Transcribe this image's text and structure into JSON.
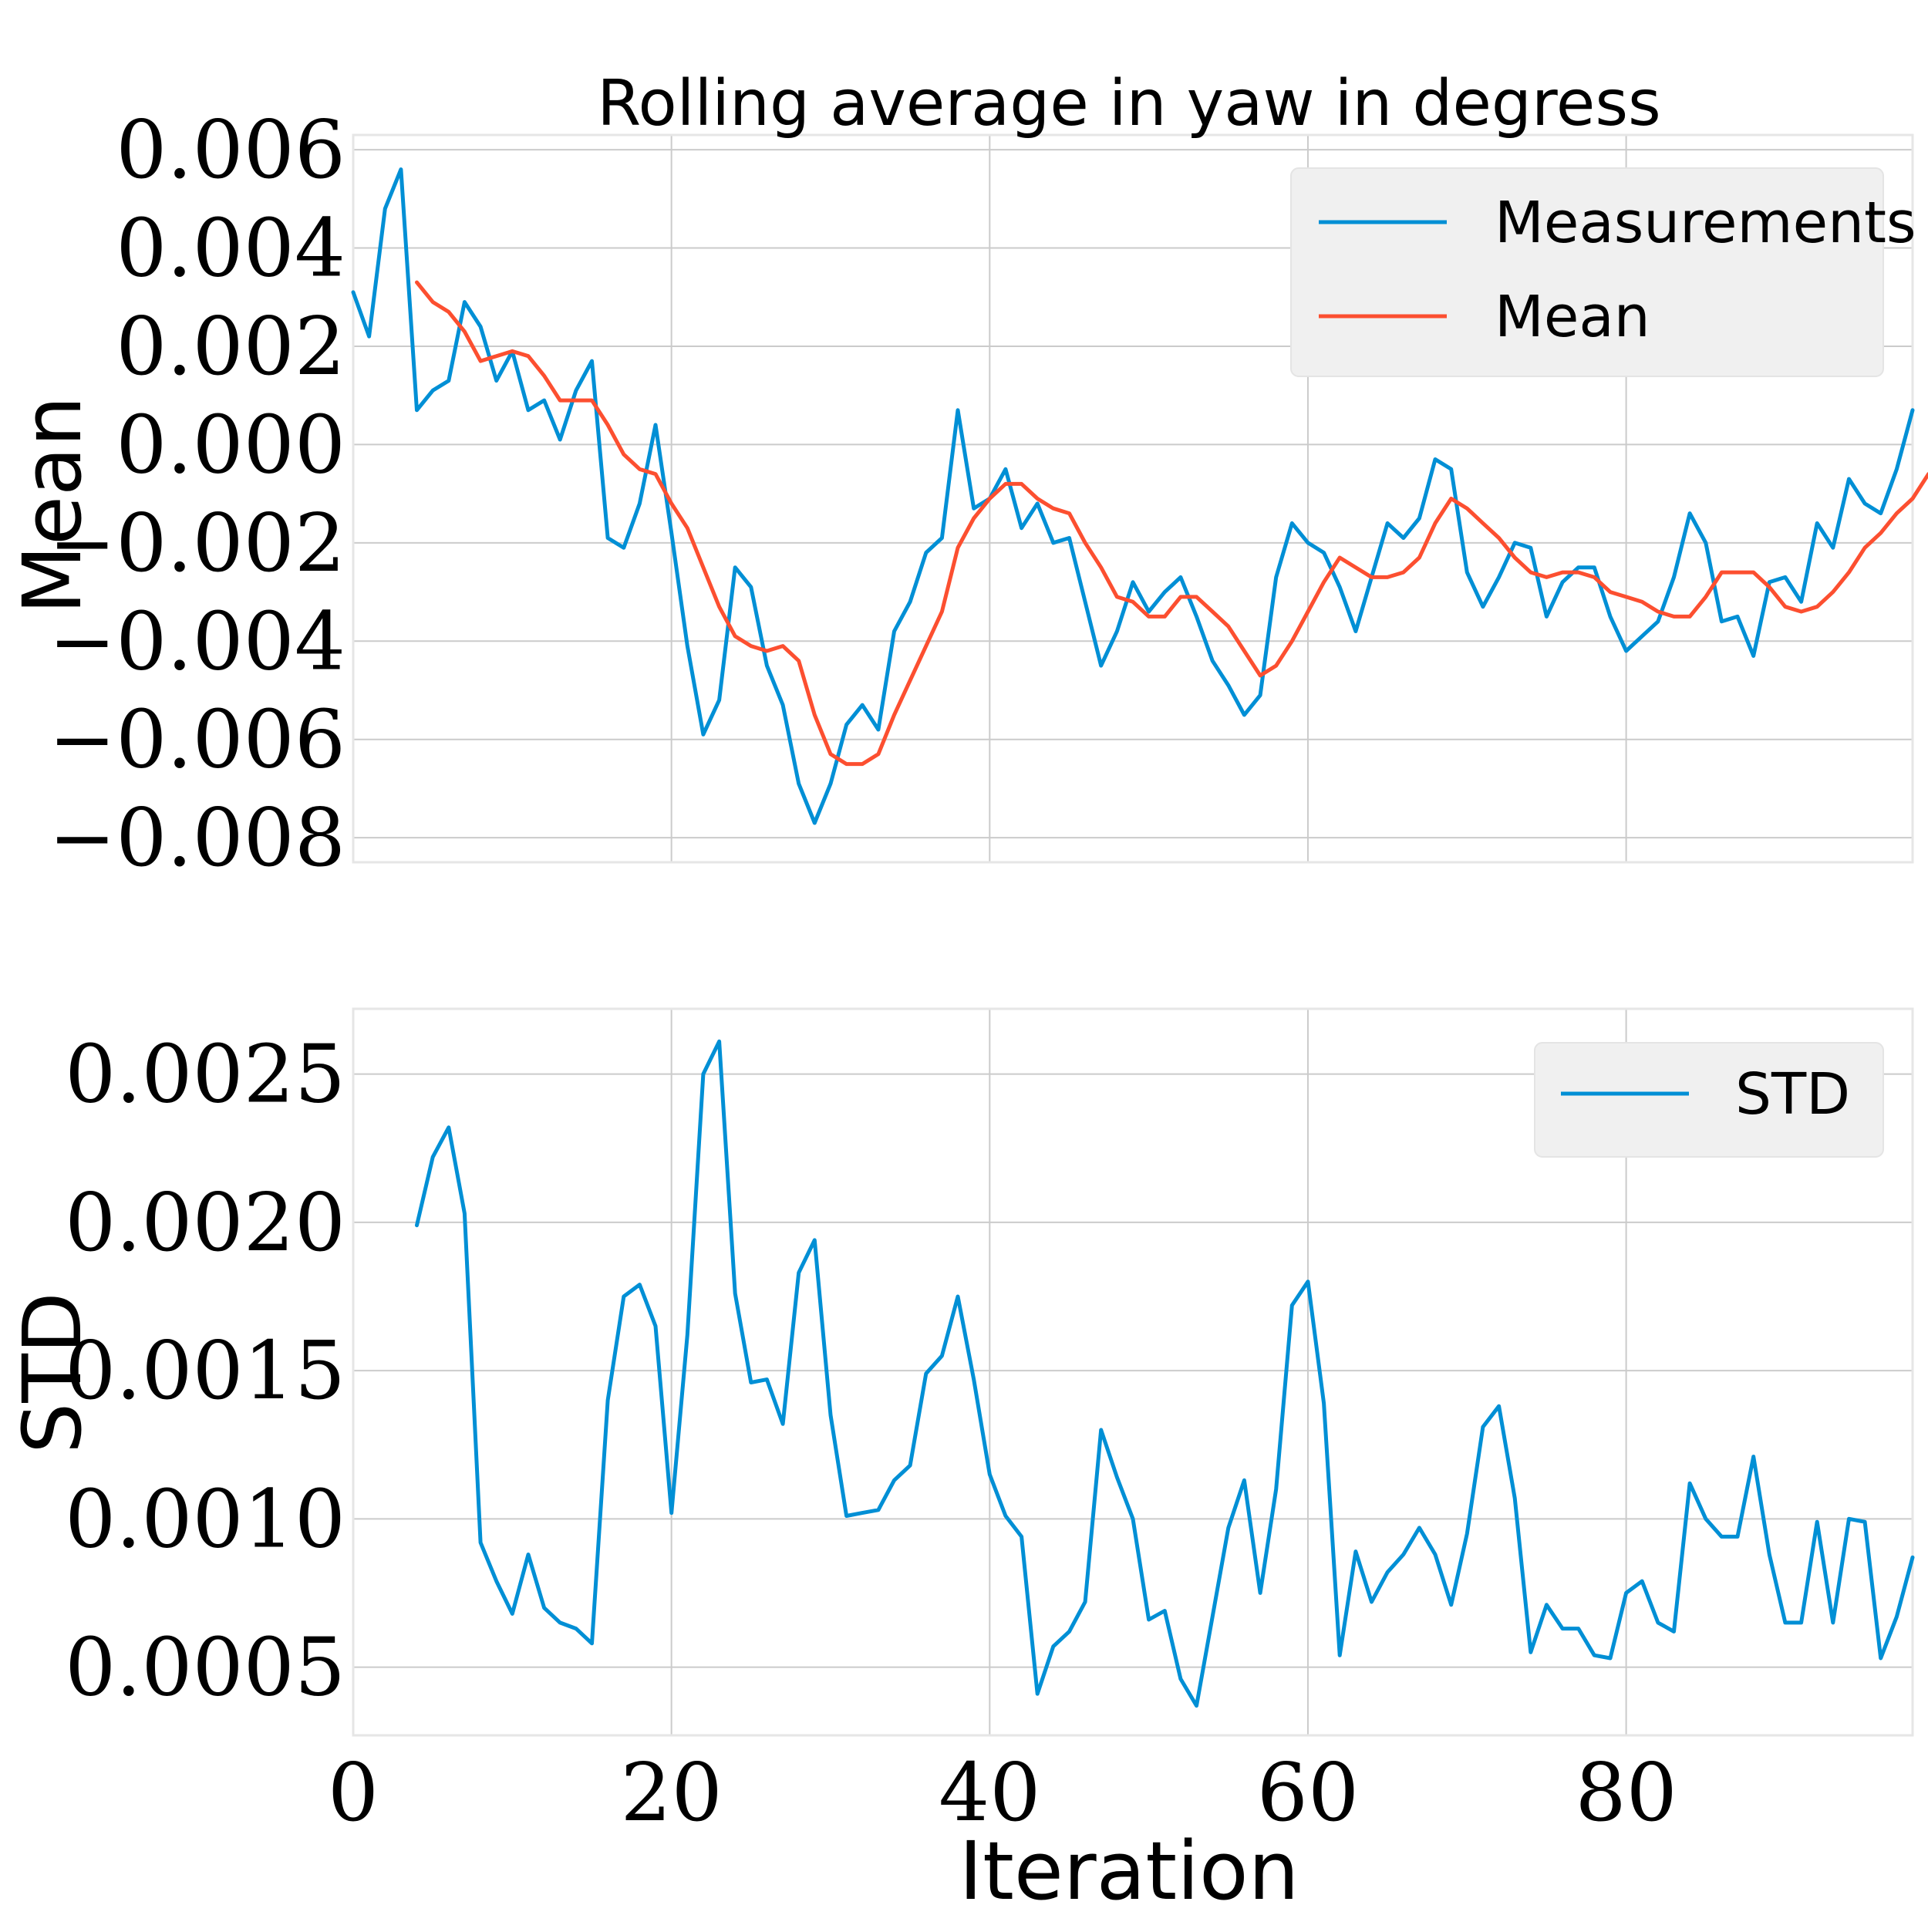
{
  "colors": {
    "measurements": "#008FD5",
    "mean": "#FC4F30",
    "std": "#008FD5",
    "grid": "#CBCBCB",
    "legend_bg": "#F0F0F0",
    "frame": "#E6E6E6"
  },
  "chart_data": [
    {
      "type": "line",
      "title": "Rolling average in yaw in degress",
      "ylabel": "Mean",
      "xlabel": "",
      "xlim": [
        0,
        98
      ],
      "ylim": [
        -0.0085,
        0.0063
      ],
      "grid": true,
      "legend_position": "top-right",
      "x_ticks": [
        0,
        20,
        40,
        60,
        80
      ],
      "y_ticks": [
        {
          "value": -0.008,
          "label": "−0.008"
        },
        {
          "value": -0.006,
          "label": "−0.006"
        },
        {
          "value": -0.004,
          "label": "−0.004"
        },
        {
          "value": -0.002,
          "label": "−0.002"
        },
        {
          "value": 0.0,
          "label": "0.000"
        },
        {
          "value": 0.002,
          "label": "0.002"
        },
        {
          "value": 0.004,
          "label": "0.004"
        },
        {
          "value": 0.006,
          "label": "0.006"
        }
      ],
      "series": [
        {
          "name": "Measurements",
          "color": "#008FD5",
          "x_start": 0,
          "values": [
            0.0031,
            0.0022,
            0.0048,
            0.0056,
            0.0007,
            0.0011,
            0.0013,
            0.0029,
            0.0024,
            0.0013,
            0.0019,
            0.0007,
            0.0009,
            0.0001,
            0.0011,
            0.0017,
            -0.0019,
            -0.0021,
            -0.0012,
            0.0004,
            -0.0018,
            -0.0041,
            -0.0059,
            -0.0052,
            -0.0025,
            -0.0029,
            -0.0045,
            -0.0053,
            -0.0069,
            -0.0077,
            -0.0069,
            -0.0057,
            -0.0053,
            -0.0058,
            -0.0038,
            -0.0032,
            -0.0022,
            -0.0019,
            0.0007,
            -0.0013,
            -0.0011,
            -0.0005,
            -0.0017,
            -0.0012,
            -0.002,
            -0.0019,
            -0.0032,
            -0.0045,
            -0.0038,
            -0.0028,
            -0.0034,
            -0.003,
            -0.0027,
            -0.0035,
            -0.0044,
            -0.0049,
            -0.0055,
            -0.0051,
            -0.0027,
            -0.0016,
            -0.002,
            -0.0022,
            -0.0029,
            -0.0038,
            -0.0027,
            -0.0016,
            -0.0019,
            -0.0015,
            -0.0003,
            -0.0005,
            -0.0026,
            -0.0033,
            -0.0027,
            -0.002,
            -0.0021,
            -0.0035,
            -0.0028,
            -0.0025,
            -0.0025,
            -0.0035,
            -0.0042,
            -0.0039,
            -0.0036,
            -0.0027,
            -0.0014,
            -0.002,
            -0.0036,
            -0.0035,
            -0.0043,
            -0.0028,
            -0.0027,
            -0.0032,
            -0.0016,
            -0.0021,
            -0.0007,
            -0.0012,
            -0.0014,
            -0.0005,
            0.0007
          ]
        },
        {
          "name": "Mean",
          "color": "#FC4F30",
          "x_start": 4,
          "values": [
            0.0033,
            0.0029,
            0.0027,
            0.0023,
            0.0017,
            0.0018,
            0.0019,
            0.0018,
            0.0014,
            0.0009,
            0.0009,
            0.0009,
            0.0004,
            -0.0002,
            -0.0005,
            -0.0006,
            -0.0012,
            -0.0017,
            -0.0025,
            -0.0033,
            -0.0039,
            -0.0041,
            -0.0042,
            -0.0041,
            -0.0044,
            -0.0055,
            -0.0063,
            -0.0065,
            -0.0065,
            -0.0063,
            -0.0055,
            -0.0048,
            -0.0041,
            -0.0034,
            -0.0021,
            -0.0015,
            -0.0011,
            -0.0008,
            -0.0008,
            -0.0011,
            -0.0013,
            -0.0014,
            -0.002,
            -0.0025,
            -0.0031,
            -0.0032,
            -0.0035,
            -0.0035,
            -0.0031,
            -0.0031,
            -0.0034,
            -0.0037,
            -0.0042,
            -0.0047,
            -0.0045,
            -0.004,
            -0.0034,
            -0.0028,
            -0.0023,
            -0.0025,
            -0.0027,
            -0.0027,
            -0.0026,
            -0.0023,
            -0.0016,
            -0.0011,
            -0.0013,
            -0.0016,
            -0.0019,
            -0.0023,
            -0.0026,
            -0.0027,
            -0.0026,
            -0.0026,
            -0.0027,
            -0.003,
            -0.0031,
            -0.0032,
            -0.0034,
            -0.0035,
            -0.0035,
            -0.0031,
            -0.0026,
            -0.0026,
            -0.0026,
            -0.0029,
            -0.0033,
            -0.0034,
            -0.0033,
            -0.003,
            -0.0026,
            -0.0021,
            -0.0018,
            -0.0014,
            -0.0011,
            -0.0006
          ]
        }
      ]
    },
    {
      "type": "line",
      "title": "",
      "ylabel": "STD",
      "xlabel": "Iteration",
      "xlim": [
        0,
        98
      ],
      "ylim": [
        0.00027,
        0.00272
      ],
      "grid": true,
      "legend_position": "top-right",
      "x_ticks": [
        {
          "value": 0,
          "label": "0"
        },
        {
          "value": 20,
          "label": "20"
        },
        {
          "value": 40,
          "label": "40"
        },
        {
          "value": 60,
          "label": "60"
        },
        {
          "value": 80,
          "label": "80"
        }
      ],
      "y_ticks": [
        {
          "value": 0.0005,
          "label": "0.0005"
        },
        {
          "value": 0.001,
          "label": "0.0010"
        },
        {
          "value": 0.0015,
          "label": "0.0015"
        },
        {
          "value": 0.002,
          "label": "0.0020"
        },
        {
          "value": 0.0025,
          "label": "0.0025"
        }
      ],
      "series": [
        {
          "name": "STD",
          "color": "#008FD5",
          "x_start": 4,
          "values": [
            0.00199,
            0.00222,
            0.00232,
            0.00203,
            0.00092,
            0.00079,
            0.00068,
            0.00088,
            0.0007,
            0.00065,
            0.00063,
            0.00058,
            0.0014,
            0.00175,
            0.00179,
            0.00165,
            0.00102,
            0.00162,
            0.0025,
            0.00261,
            0.00176,
            0.00146,
            0.00147,
            0.00132,
            0.00183,
            0.00194,
            0.00135,
            0.00101,
            0.00102,
            0.00103,
            0.00113,
            0.00118,
            0.00149,
            0.00155,
            0.00175,
            0.00147,
            0.00115,
            0.00101,
            0.00094,
            0.00041,
            0.00057,
            0.00062,
            0.00072,
            0.0013,
            0.00114,
            0.001,
            0.00066,
            0.00069,
            0.00046,
            0.00037,
            0.00067,
            0.00097,
            0.00113,
            0.00075,
            0.0011,
            0.00172,
            0.0018,
            0.00139,
            0.00054,
            0.00089,
            0.00072,
            0.00082,
            0.00088,
            0.00097,
            0.00088,
            0.00071,
            0.00095,
            0.00131,
            0.00138,
            0.00107,
            0.00055,
            0.00071,
            0.00063,
            0.00063,
            0.00054,
            0.00053,
            0.00075,
            0.00079,
            0.00065,
            0.00062,
            0.00112,
            0.001,
            0.00094,
            0.00094,
            0.00121,
            0.00088,
            0.00065,
            0.00065,
            0.00099,
            0.00065,
            0.001,
            0.00099,
            0.00053,
            0.00067,
            0.00087
          ]
        }
      ]
    }
  ]
}
